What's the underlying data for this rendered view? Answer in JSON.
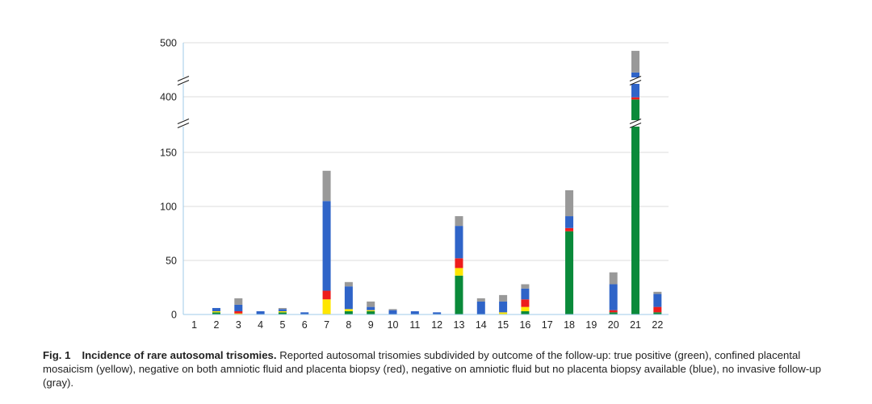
{
  "chart_data": {
    "type": "bar",
    "stacked": true,
    "categories": [
      "1",
      "2",
      "3",
      "4",
      "5",
      "6",
      "7",
      "8",
      "9",
      "10",
      "11",
      "12",
      "13",
      "14",
      "15",
      "16",
      "17",
      "18",
      "19",
      "20",
      "21",
      "22"
    ],
    "y_ticks": [
      "0",
      "50",
      "100",
      "150",
      "400",
      "500"
    ],
    "axis_break": true,
    "series": [
      {
        "key": "true_positive",
        "color": "#0a8a3a",
        "values": [
          0,
          2,
          0,
          0,
          2,
          0,
          0,
          3,
          3,
          0,
          0,
          0,
          36,
          0,
          0,
          3,
          0,
          77,
          0,
          2,
          395,
          2
        ]
      },
      {
        "key": "confined_placental_mosaicism",
        "color": "#ffe600",
        "values": [
          0,
          1,
          1,
          0,
          1,
          0,
          14,
          2,
          1,
          0,
          0,
          0,
          7,
          0,
          2,
          4,
          0,
          0,
          0,
          0,
          0,
          0
        ]
      },
      {
        "key": "negative_both",
        "color": "#ee1c1c",
        "values": [
          0,
          0,
          2,
          0,
          0,
          0,
          8,
          0,
          0,
          0,
          0,
          0,
          9,
          0,
          0,
          7,
          0,
          3,
          0,
          2,
          4,
          5
        ]
      },
      {
        "key": "negative_amniotic_no_biopsy",
        "color": "#2f64c8",
        "values": [
          0,
          3,
          6,
          3,
          2,
          2,
          83,
          21,
          3,
          4,
          3,
          2,
          30,
          12,
          10,
          10,
          0,
          11,
          0,
          24,
          46,
          12
        ]
      },
      {
        "key": "no_invasive_follow_up",
        "color": "#999999",
        "values": [
          0,
          0,
          6,
          0,
          1,
          0,
          28,
          4,
          5,
          1,
          0,
          0,
          9,
          3,
          6,
          4,
          0,
          24,
          0,
          11,
          40,
          2
        ]
      }
    ]
  },
  "caption": {
    "label": "Fig. 1",
    "title": "Incidence of rare autosomal trisomies.",
    "text": " Reported autosomal trisomies subdivided by outcome of the follow-up: true positive (green), confined placental mosaicism (yellow), negative on both amniotic fluid and placenta biopsy (red), negative on amniotic fluid but no placenta biopsy available (blue), no invasive follow-up (gray)."
  }
}
